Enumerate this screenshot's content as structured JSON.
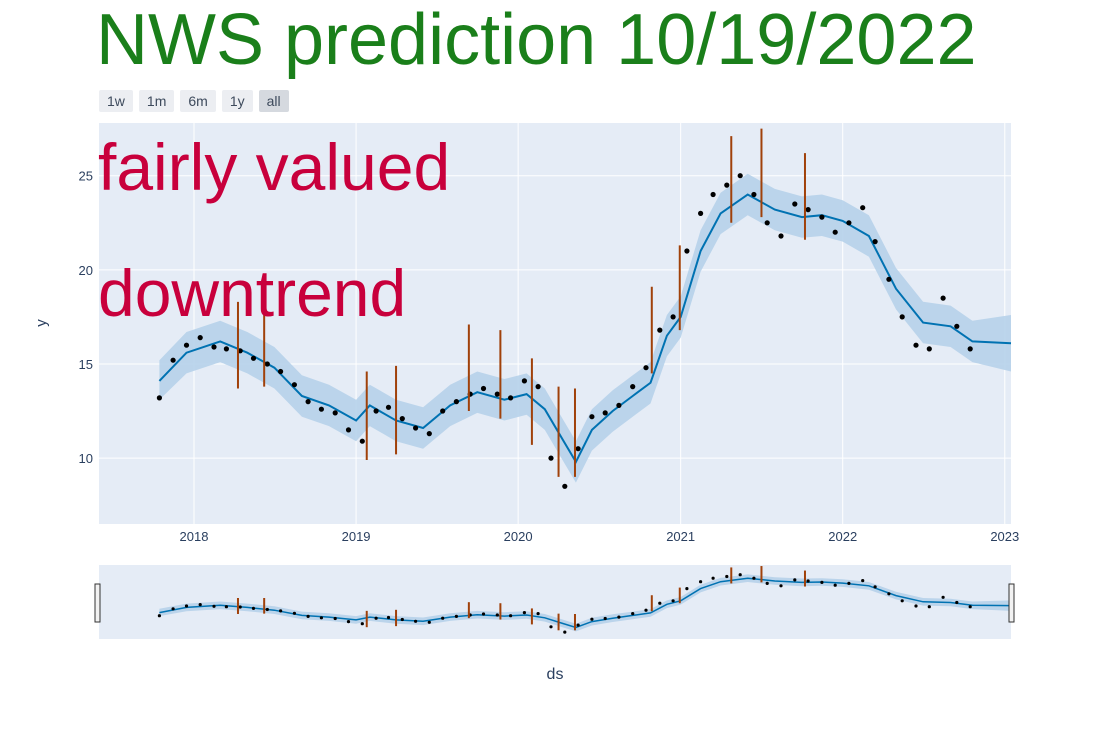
{
  "title": "NWS prediction 10/19/2022",
  "annotations": [
    "fairly valued",
    "downtrend"
  ],
  "range_buttons": [
    {
      "label": "1w",
      "active": false
    },
    {
      "label": "1m",
      "active": false
    },
    {
      "label": "6m",
      "active": false
    },
    {
      "label": "1y",
      "active": false
    },
    {
      "label": "all",
      "active": true
    }
  ],
  "colors": {
    "title": "#1a7f1a",
    "annotation": "#c8003c",
    "plot_bg": "#e5ecf6",
    "forecast_line": "#0072b2",
    "uncertainty_band": "#b6d2ea",
    "actual_points": "#000000",
    "changepoints": "#a0410a"
  },
  "chart_data": {
    "type": "line",
    "xlabel": "ds",
    "ylabel": "y",
    "x_range": [
      "2017-06-01",
      "2023-01-15"
    ],
    "ylim": [
      6.5,
      27.8
    ],
    "x_ticks": [
      "2018",
      "2019",
      "2020",
      "2021",
      "2022",
      "2023"
    ],
    "y_ticks": [
      10,
      15,
      20,
      25
    ],
    "grid": true,
    "rangeslider": true,
    "series": [
      {
        "kind": "forecast_yhat",
        "x": [
          "2017-10-15",
          "2017-12-15",
          "2018-03-01",
          "2018-05-01",
          "2018-07-01",
          "2018-09-01",
          "2018-11-01",
          "2019-01-01",
          "2019-02-01",
          "2019-04-01",
          "2019-06-01",
          "2019-08-01",
          "2019-10-01",
          "2019-12-01",
          "2020-01-20",
          "2020-03-01",
          "2020-04-10",
          "2020-05-10",
          "2020-06-15",
          "2020-08-01",
          "2020-09-15",
          "2020-10-25",
          "2020-12-01",
          "2021-01-01",
          "2021-02-15",
          "2021-04-01",
          "2021-06-01",
          "2021-08-01",
          "2021-10-01",
          "2021-11-15",
          "2022-01-01",
          "2022-03-01",
          "2022-05-01",
          "2022-07-01",
          "2022-09-01",
          "2022-10-20",
          "2023-01-15"
        ],
        "values": [
          14.1,
          15.6,
          16.2,
          15.6,
          14.8,
          13.3,
          12.8,
          12.0,
          12.8,
          12.0,
          11.6,
          12.8,
          13.5,
          13.1,
          13.4,
          12.6,
          11.0,
          9.8,
          11.5,
          12.5,
          13.3,
          14.0,
          16.5,
          17.5,
          21.0,
          23.0,
          24.0,
          23.2,
          22.8,
          22.9,
          22.6,
          21.8,
          19.0,
          17.2,
          17.0,
          16.2,
          16.1
        ]
      },
      {
        "kind": "uncertainty",
        "x": [
          "2017-10-15",
          "2017-12-15",
          "2018-03-01",
          "2018-05-01",
          "2018-07-01",
          "2018-09-01",
          "2018-11-01",
          "2019-01-01",
          "2019-02-01",
          "2019-04-01",
          "2019-06-01",
          "2019-08-01",
          "2019-10-01",
          "2019-12-01",
          "2020-01-20",
          "2020-03-01",
          "2020-04-10",
          "2020-05-10",
          "2020-06-15",
          "2020-08-01",
          "2020-09-15",
          "2020-10-25",
          "2020-12-01",
          "2021-01-01",
          "2021-02-15",
          "2021-04-01",
          "2021-06-01",
          "2021-08-01",
          "2021-10-01",
          "2021-11-15",
          "2022-01-01",
          "2022-03-01",
          "2022-05-01",
          "2022-07-01",
          "2022-09-01",
          "2022-10-20",
          "2023-01-15"
        ],
        "lower": [
          13.1,
          14.5,
          15.1,
          14.5,
          13.7,
          12.2,
          11.7,
          10.9,
          11.7,
          10.9,
          10.5,
          11.7,
          12.4,
          12.0,
          12.3,
          11.5,
          9.9,
          8.7,
          10.4,
          11.4,
          12.2,
          12.9,
          15.4,
          16.4,
          19.9,
          21.9,
          22.9,
          22.1,
          21.7,
          21.8,
          21.5,
          20.7,
          17.9,
          16.1,
          15.9,
          15.1,
          14.6
        ],
        "upper": [
          15.2,
          16.7,
          17.3,
          16.7,
          15.9,
          14.4,
          13.9,
          13.1,
          13.9,
          13.1,
          12.7,
          13.9,
          14.6,
          14.2,
          14.5,
          13.7,
          12.1,
          10.9,
          12.6,
          13.6,
          14.4,
          15.1,
          17.6,
          18.6,
          22.1,
          24.1,
          25.1,
          24.3,
          23.9,
          24.0,
          23.7,
          22.9,
          20.1,
          18.3,
          18.1,
          17.3,
          17.6
        ]
      },
      {
        "kind": "actual",
        "x": [
          "2017-10-15",
          "2017-11-15",
          "2017-12-15",
          "2018-01-15",
          "2018-02-15",
          "2018-03-15",
          "2018-04-15",
          "2018-05-15",
          "2018-06-15",
          "2018-07-15",
          "2018-08-15",
          "2018-09-15",
          "2018-10-15",
          "2018-11-15",
          "2018-12-15",
          "2019-01-15",
          "2019-02-15",
          "2019-03-15",
          "2019-04-15",
          "2019-05-15",
          "2019-06-15",
          "2019-07-15",
          "2019-08-15",
          "2019-09-15",
          "2019-10-15",
          "2019-11-15",
          "2019-12-15",
          "2020-01-15",
          "2020-02-15",
          "2020-03-15",
          "2020-04-15",
          "2020-05-15",
          "2020-06-15",
          "2020-07-15",
          "2020-08-15",
          "2020-09-15",
          "2020-10-15",
          "2020-11-15",
          "2020-12-15",
          "2021-01-15",
          "2021-02-15",
          "2021-03-15",
          "2021-04-15",
          "2021-05-15",
          "2021-06-15",
          "2021-07-15",
          "2021-08-15",
          "2021-09-15",
          "2021-10-15",
          "2021-11-15",
          "2021-12-15",
          "2022-01-15",
          "2022-02-15",
          "2022-03-15",
          "2022-04-15",
          "2022-05-15",
          "2022-06-15",
          "2022-07-15",
          "2022-08-15",
          "2022-09-15",
          "2022-10-15"
        ],
        "values": [
          13.2,
          15.2,
          16.0,
          16.4,
          15.9,
          15.8,
          15.7,
          15.3,
          15.0,
          14.6,
          13.9,
          13.0,
          12.6,
          12.4,
          11.5,
          10.9,
          12.5,
          12.7,
          12.1,
          11.6,
          11.3,
          12.5,
          13.0,
          13.4,
          13.7,
          13.4,
          13.2,
          14.1,
          13.8,
          10.0,
          8.5,
          10.5,
          12.2,
          12.4,
          12.8,
          13.8,
          14.8,
          16.8,
          17.5,
          21.0,
          23.0,
          24.0,
          24.5,
          25.0,
          24.0,
          22.5,
          21.8,
          23.5,
          23.2,
          22.8,
          22.0,
          22.5,
          23.3,
          21.5,
          19.5,
          17.5,
          16.0,
          15.8,
          18.5,
          17.0,
          15.8
        ]
      }
    ],
    "changepoints": [
      {
        "x": "2018-04-10",
        "low": 13.7,
        "high": 18.3
      },
      {
        "x": "2018-06-08",
        "low": 13.8,
        "high": 18.3
      },
      {
        "x": "2019-01-25",
        "low": 9.9,
        "high": 14.6
      },
      {
        "x": "2019-04-01",
        "low": 10.2,
        "high": 14.9
      },
      {
        "x": "2019-09-12",
        "low": 12.5,
        "high": 17.1
      },
      {
        "x": "2019-11-22",
        "low": 12.1,
        "high": 16.8
      },
      {
        "x": "2020-02-01",
        "low": 10.7,
        "high": 15.3
      },
      {
        "x": "2020-04-01",
        "low": 9.0,
        "high": 13.8
      },
      {
        "x": "2020-05-08",
        "low": 9.0,
        "high": 13.7
      },
      {
        "x": "2020-10-28",
        "low": 14.5,
        "high": 19.1
      },
      {
        "x": "2020-12-30",
        "low": 16.8,
        "high": 21.3
      },
      {
        "x": "2021-04-25",
        "low": 22.5,
        "high": 27.1
      },
      {
        "x": "2021-07-02",
        "low": 22.8,
        "high": 27.5
      },
      {
        "x": "2021-10-08",
        "low": 21.6,
        "high": 26.2
      }
    ]
  }
}
